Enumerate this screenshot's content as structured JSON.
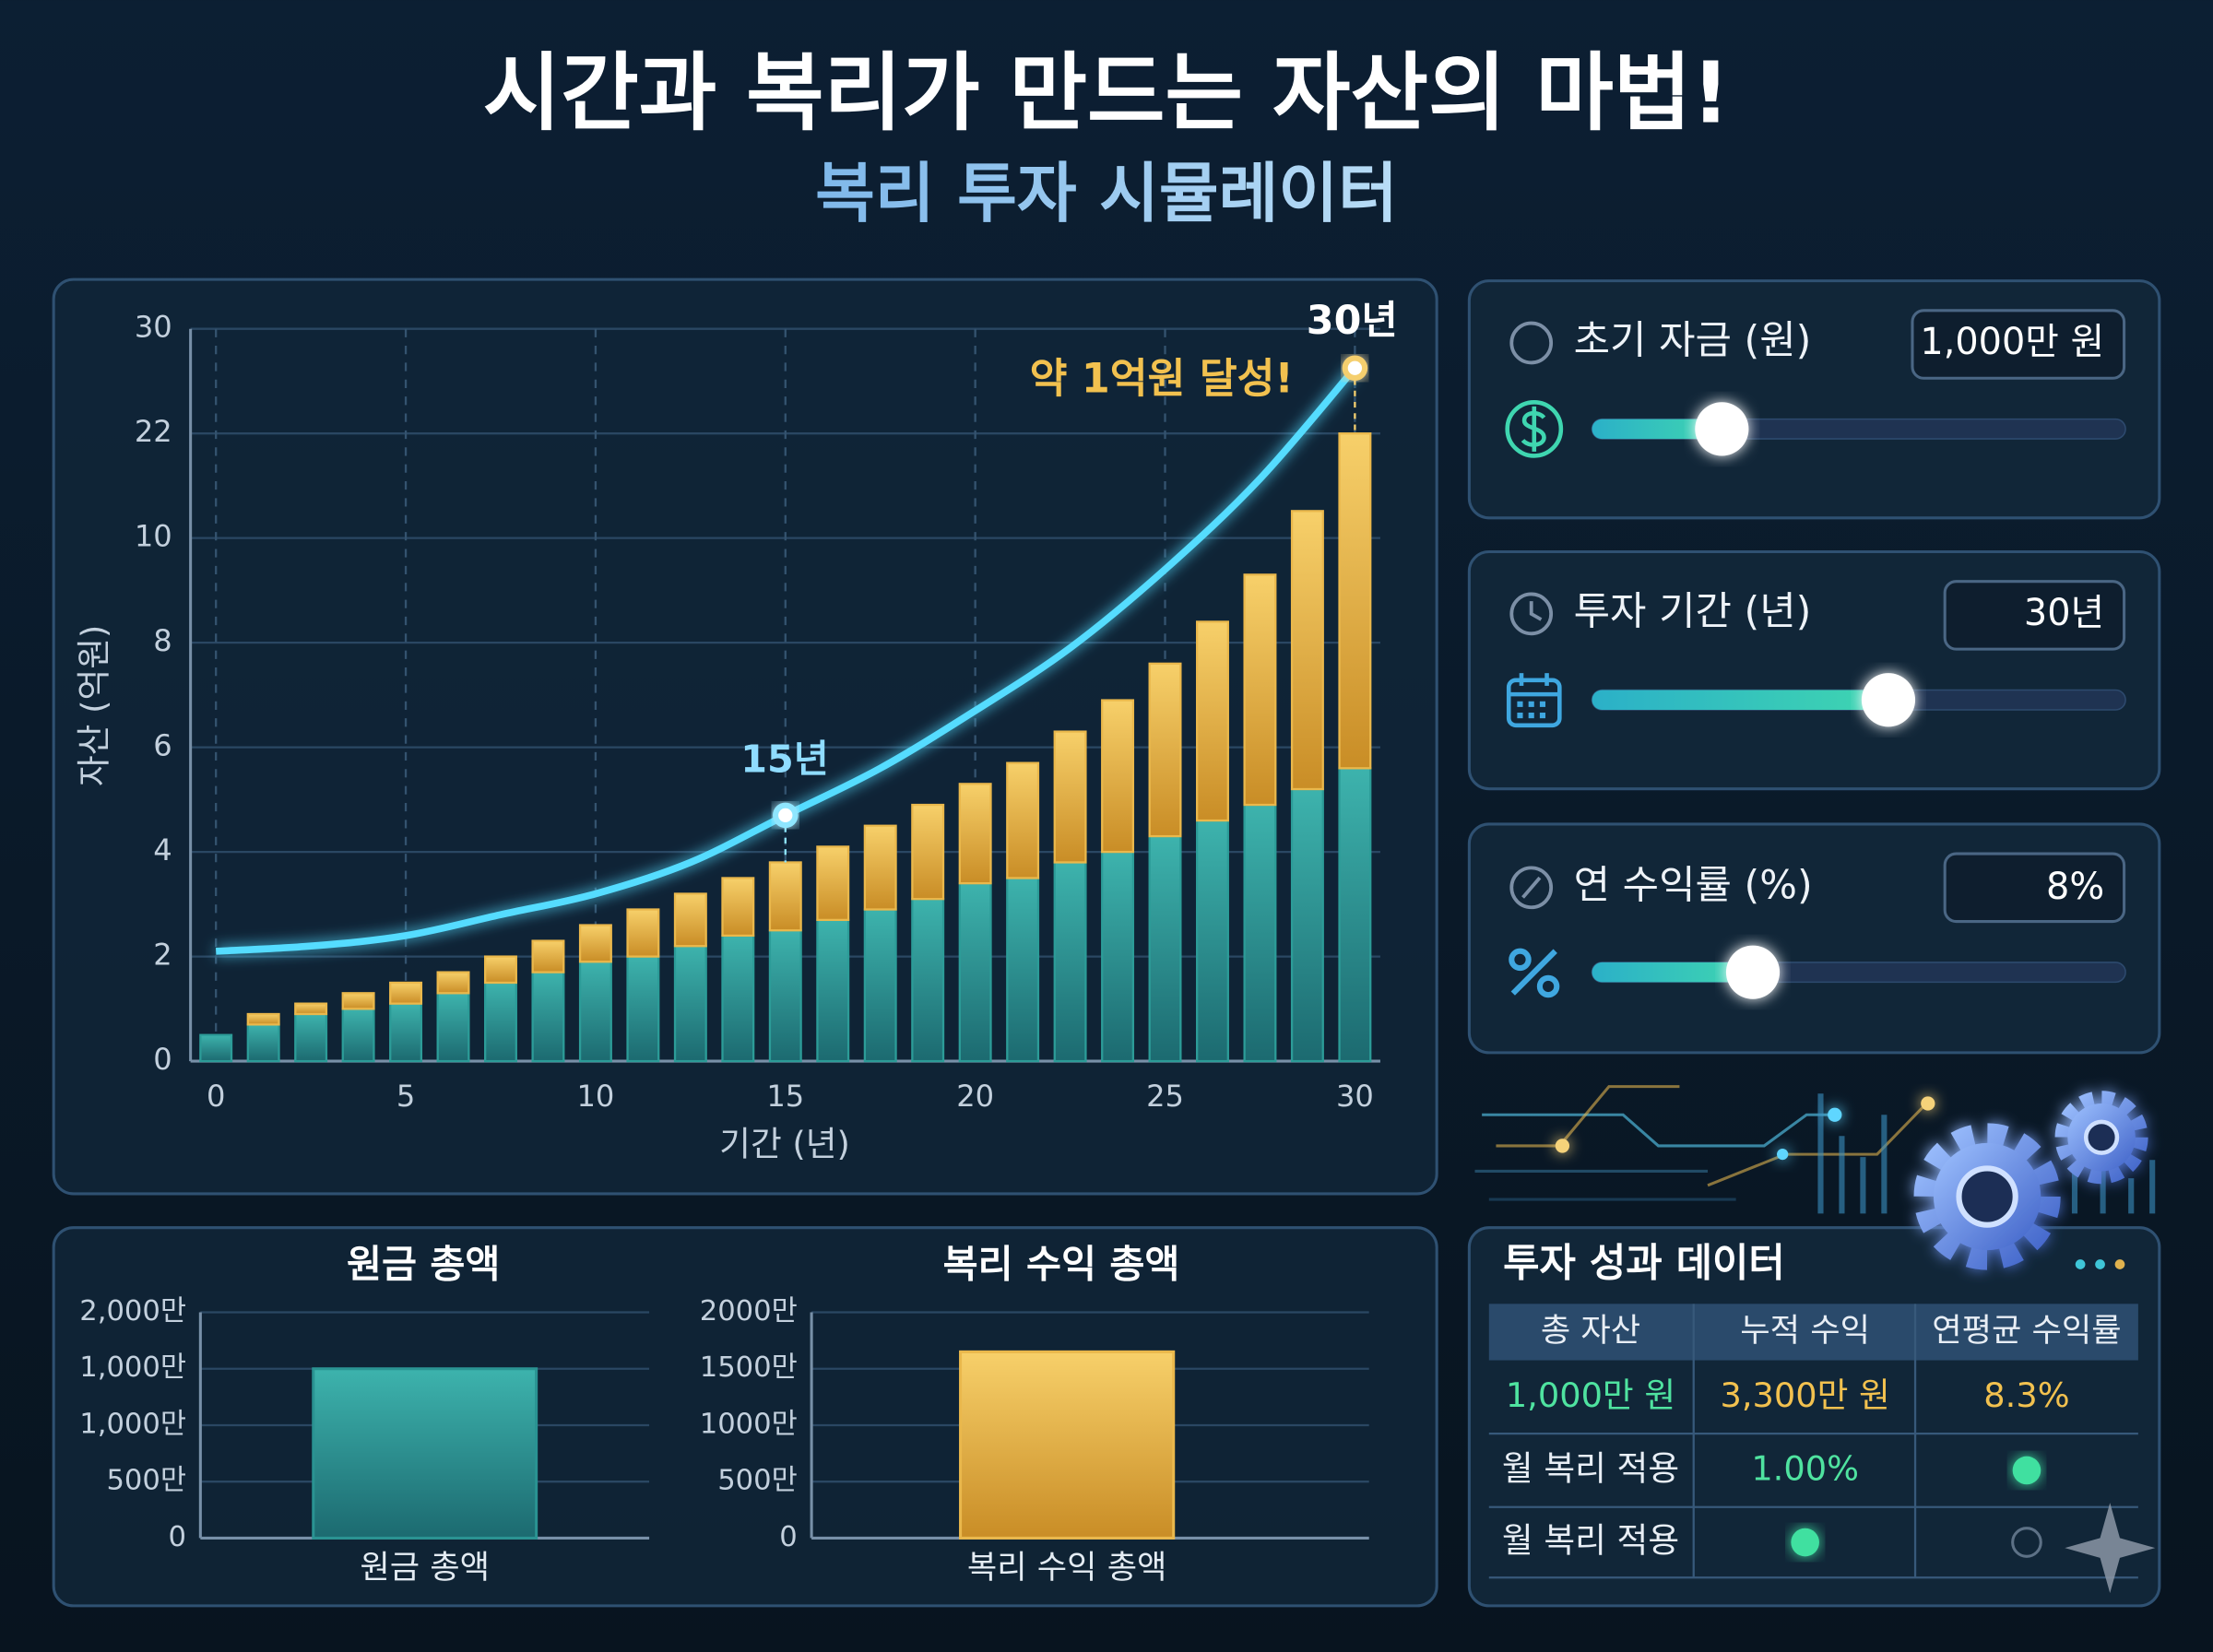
{
  "header": {
    "title": "시간과 복리가 만드는 자산의 마법!",
    "subtitle": "복리 투자 시뮬레이터"
  },
  "chart_data": [
    {
      "type": "bar",
      "stacked": true,
      "x": [
        0,
        1.25,
        2.5,
        3.75,
        5,
        6.25,
        7.5,
        8.75,
        10,
        11.25,
        12.5,
        13.75,
        15,
        16.25,
        17.5,
        18.75,
        20,
        21.25,
        22.5,
        23.75,
        25,
        26.25,
        27.5,
        28.75,
        30
      ],
      "xlim": [
        0,
        30
      ],
      "xticks": [
        0,
        5,
        10,
        15,
        20,
        25,
        30
      ],
      "ylim": [
        0,
        30
      ],
      "yticks": [
        0,
        2,
        4,
        6,
        8,
        10,
        22,
        30
      ],
      "x_label": "기간 (년)",
      "y_label": "자산 (억원)",
      "grid": true,
      "series": [
        {
          "color": "#2c9c98",
          "values": [
            0.5,
            0.7,
            0.9,
            1.0,
            1.1,
            1.3,
            1.5,
            1.7,
            1.9,
            2.0,
            2.2,
            2.4,
            2.5,
            2.7,
            2.9,
            3.1,
            3.4,
            3.5,
            3.8,
            4.0,
            4.3,
            4.6,
            4.9,
            5.2,
            5.6
          ]
        },
        {
          "color": "#eab84c",
          "values": [
            0,
            0.2,
            0.2,
            0.3,
            0.4,
            0.4,
            0.5,
            0.6,
            0.7,
            0.9,
            1.0,
            1.1,
            1.3,
            1.4,
            1.6,
            1.8,
            1.9,
            2.2,
            2.5,
            2.9,
            3.3,
            3.8,
            4.4,
            7.9,
            16.4
          ]
        },
        {
          "type": "line",
          "color": "#55dcff",
          "x": [
            0,
            2.5,
            5,
            7.5,
            10,
            12.5,
            15,
            17.5,
            20,
            22.5,
            25,
            27.5,
            30
          ],
          "values": [
            2.1,
            2.2,
            2.4,
            2.8,
            3.2,
            3.8,
            4.7,
            5.6,
            6.7,
            7.9,
            9.4,
            16.8,
            27
          ]
        }
      ],
      "annotations": [
        "30년",
        "약 1억원 달성!",
        "15년"
      ]
    },
    {
      "type": "bar",
      "title": "원금 총액",
      "categories": [
        "원금 총액"
      ],
      "values": [
        1000
      ],
      "color": "#2a9392",
      "ylim": [
        0,
        2000
      ],
      "yticks": [
        0,
        {
          "value": 500,
          "label": "500만"
        },
        {
          "value": 1000,
          "label": "1,000만"
        },
        {
          "value": 1000,
          "label": "1,000만"
        },
        {
          "value": 2000,
          "label": "2,000만"
        }
      ],
      "grid": true
    },
    {
      "type": "bar",
      "title": "복리 수익 총액",
      "categories": [
        "복리 수익 총액"
      ],
      "values": [
        1650
      ],
      "color": "#eab84c",
      "ylim": [
        0,
        2000
      ],
      "yticks": [
        0,
        {
          "value": 500,
          "label": "500만"
        },
        {
          "value": 1000,
          "label": "1000만"
        },
        {
          "value": 1500,
          "label": "1500만"
        },
        {
          "value": 2000,
          "label": "2000만"
        }
      ],
      "grid": true
    }
  ],
  "controls": [
    {
      "label": "초기 자금 (원)",
      "value": "1,000만 원"
    },
    {
      "label": "투자 기간 (년)",
      "value": "30년"
    },
    {
      "label": "연 수익률 (%)",
      "value": "8%"
    }
  ],
  "table": {
    "title": "투자 성과 데이터",
    "columns": [
      "총 자산",
      "누적 수익",
      "연평균 수익률"
    ],
    "rows": [
      [
        "1,000만 원",
        "3,300만 원",
        "8.3%"
      ],
      [
        "월 복리 적용",
        "1.00%"
      ],
      [
        "월 복리 적용"
      ]
    ]
  }
}
